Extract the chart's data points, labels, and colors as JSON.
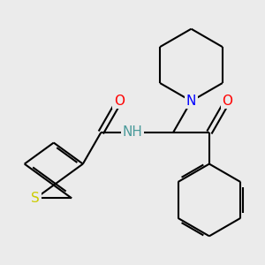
{
  "bg_color": "#ebebeb",
  "atom_colors": {
    "C": "#000000",
    "N": "#0000ff",
    "O": "#ff0000",
    "S": "#cccc00",
    "NH": "#4a9a9a"
  },
  "bond_lw": 1.5,
  "font_size": 11,
  "fig_size": [
    3.0,
    3.0
  ],
  "dpi": 100
}
